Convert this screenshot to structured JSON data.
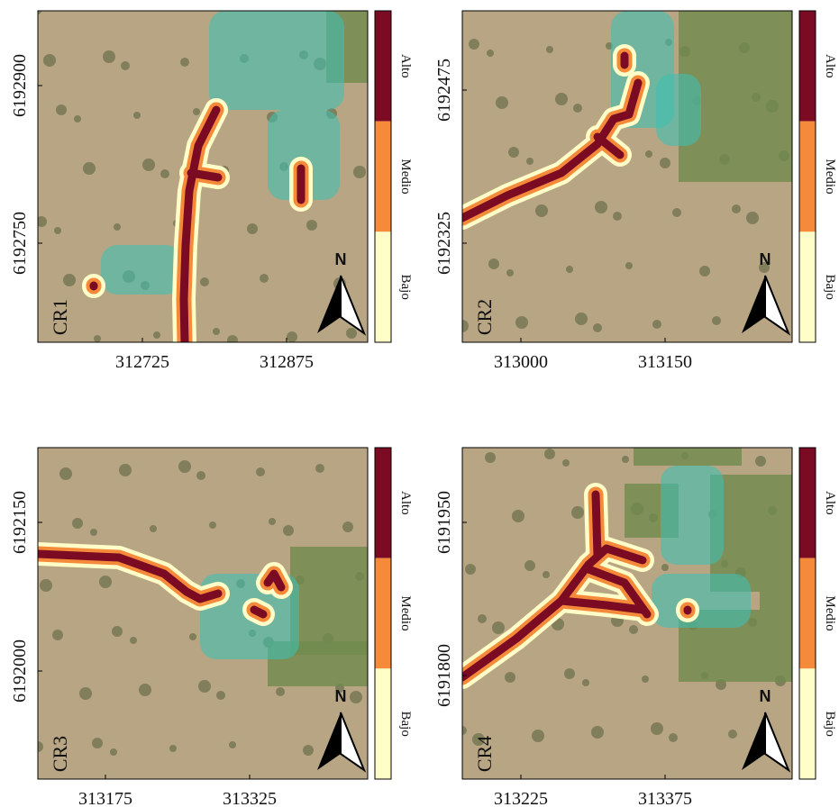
{
  "panels": [
    {
      "label": "CR1",
      "xticks": [
        312725,
        312875
      ],
      "yticks": [
        6192900,
        6192750
      ]
    },
    {
      "label": "CR2",
      "xticks": [
        313000,
        313150
      ],
      "yticks": [
        6192475,
        6192325
      ]
    },
    {
      "label": "CR3",
      "xticks": [
        313175,
        313325
      ],
      "yticks": [
        6192150,
        6192000
      ]
    },
    {
      "label": "CR4",
      "xticks": [
        313225,
        313375
      ],
      "yticks": [
        6191950,
        6191800
      ]
    }
  ],
  "colorbar": {
    "labels": [
      "Alto",
      "Medio",
      "Bajo"
    ]
  },
  "north": "N"
}
